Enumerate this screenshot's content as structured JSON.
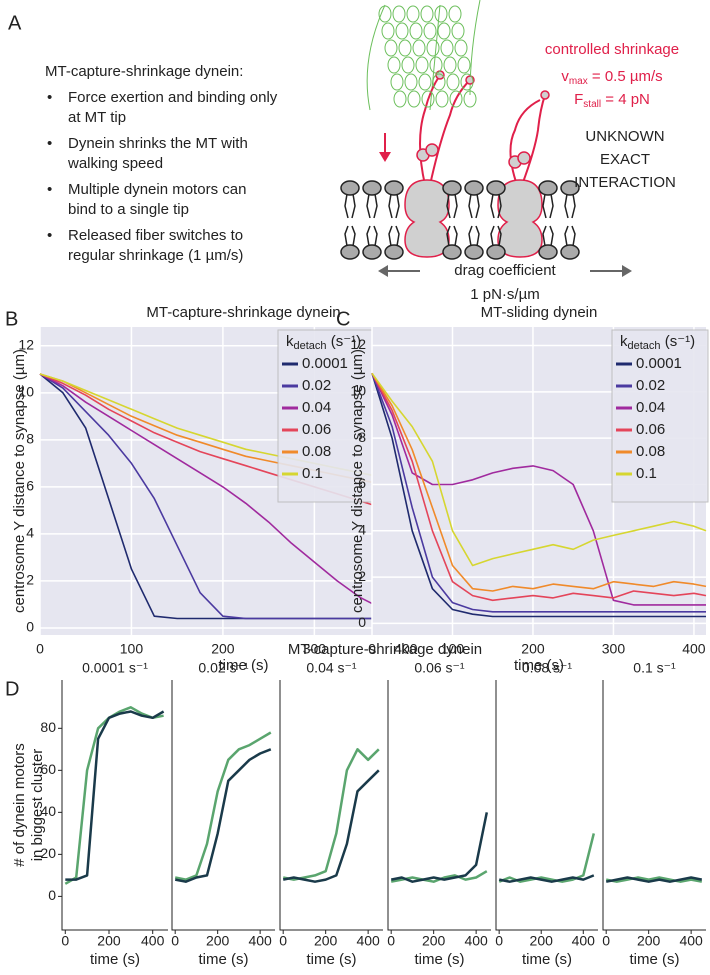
{
  "panel_a": {
    "label": "A",
    "title": "MT-capture-shrinkage dynein:",
    "bullets": [
      [
        "Force exertion and binding only",
        "at MT tip"
      ],
      [
        "Dynein shrinks the MT with",
        "walking speed"
      ],
      [
        "Multiple dynein motors can",
        "bind to a single tip"
      ],
      [
        "Released fiber switches to",
        "regular shrinkage (1 µm/s)"
      ]
    ],
    "diagram": {
      "shrinkage": "controlled shrinkage",
      "vmax": {
        "symbol": "v",
        "sub": "max",
        "rest": " = 0.5 µm/s"
      },
      "fstall": {
        "symbol": "F",
        "sub": "stall",
        "rest": " = 4 pN"
      },
      "unknown": [
        "UNKNOWN",
        "EXACT",
        "INTERACTION"
      ],
      "drag": [
        "drag coefficient",
        "1 pN·s/µm"
      ]
    }
  },
  "panel_d": {
    "label": "D",
    "title": "MT-capture-shrinkage dynein",
    "ylabel": [
      "# of dynein motors",
      "in biggest cluster"
    ]
  },
  "chart_data": [
    {
      "type": "line",
      "panel": "B",
      "title": "MT-capture-shrinkage dynein",
      "xlabel": "time (s)",
      "ylabel": "centrosome Y distance to synapse (µm)",
      "xlim": [
        0,
        445
      ],
      "ylim": [
        -0.3,
        12.8
      ],
      "xticks": [
        0,
        100,
        200,
        300,
        400
      ],
      "yticks": [
        0,
        2,
        4,
        6,
        8,
        10,
        12
      ],
      "grid": true,
      "legend_title": {
        "symbol": "k",
        "sub": "detach",
        "unit": " (s⁻¹)"
      },
      "legend": "upper right",
      "x": [
        0,
        25,
        50,
        75,
        100,
        125,
        150,
        175,
        200,
        225,
        250,
        275,
        300,
        325,
        350,
        375,
        400,
        425,
        445
      ],
      "series": [
        {
          "name": "0.0001",
          "color": "#1f2a6e",
          "values": [
            10.8,
            10,
            8.5,
            5.5,
            2.5,
            0.5,
            0.4,
            0.4,
            0.4,
            0.4,
            0.4,
            0.4,
            0.4,
            0.4,
            0.4,
            0.4,
            0.4,
            0.4,
            0.4
          ]
        },
        {
          "name": "0.02",
          "color": "#4b3aa0",
          "values": [
            10.8,
            10.2,
            9.2,
            8.2,
            7,
            5.5,
            3.5,
            1.5,
            0.5,
            0.4,
            0.4,
            0.4,
            0.4,
            0.4,
            0.4,
            0.4,
            0.4,
            0.4,
            0.4
          ]
        },
        {
          "name": "0.04",
          "color": "#a02a9e",
          "values": [
            10.8,
            10.3,
            9.6,
            9,
            8.4,
            7.8,
            7.2,
            6.6,
            6,
            5.3,
            4.5,
            3.6,
            2.8,
            2,
            1.3,
            0.8,
            0.5,
            0.4,
            0.4
          ]
        },
        {
          "name": "0.06",
          "color": "#e4455a",
          "values": [
            10.8,
            10.4,
            9.9,
            9.3,
            8.8,
            8.3,
            7.9,
            7.5,
            7.2,
            6.9,
            6.6,
            6.3,
            6,
            5.7,
            5.4,
            5.1,
            4.8,
            4.5,
            4.2
          ]
        },
        {
          "name": "0.08",
          "color": "#f08a2a",
          "values": [
            10.8,
            10.5,
            10,
            9.5,
            9,
            8.6,
            8.2,
            7.9,
            7.6,
            7.3,
            7.1,
            6.9,
            6.7,
            6.5,
            6.3,
            6.1,
            6,
            5.9,
            5.8
          ]
        },
        {
          "name": "0.1",
          "color": "#d6d630",
          "values": [
            10.8,
            10.5,
            10.1,
            9.7,
            9.3,
            8.9,
            8.5,
            8.2,
            7.9,
            7.6,
            7.4,
            7.2,
            7,
            6.8,
            6.6,
            6.4,
            6.3,
            6.2,
            6.1
          ]
        }
      ]
    },
    {
      "type": "line",
      "panel": "C",
      "title": "MT-sliding dynein",
      "xlabel": "time (s)",
      "ylabel": "centrosome Y distance to synapse (µm)",
      "xlim": [
        0,
        415
      ],
      "ylim": [
        -0.5,
        12.8
      ],
      "xticks": [
        0,
        100,
        200,
        300,
        400
      ],
      "yticks": [
        0,
        2,
        4,
        6,
        8,
        10,
        12
      ],
      "grid": true,
      "legend_title": {
        "symbol": "k",
        "sub": "detach",
        "unit": " (s⁻¹)"
      },
      "legend": "upper right",
      "x": [
        0,
        25,
        50,
        75,
        100,
        125,
        150,
        175,
        200,
        225,
        250,
        275,
        300,
        325,
        350,
        375,
        400,
        415
      ],
      "series": [
        {
          "name": "0.0001",
          "color": "#1f2a6e",
          "values": [
            10.8,
            8,
            4,
            1.5,
            0.6,
            0.4,
            0.3,
            0.3,
            0.3,
            0.3,
            0.3,
            0.3,
            0.3,
            0.3,
            0.3,
            0.3,
            0.3,
            0.3
          ]
        },
        {
          "name": "0.02",
          "color": "#4b3aa0",
          "values": [
            10.8,
            8.5,
            5,
            2,
            0.9,
            0.6,
            0.5,
            0.5,
            0.5,
            0.5,
            0.5,
            0.5,
            0.5,
            0.5,
            0.5,
            0.5,
            0.5,
            0.5
          ]
        },
        {
          "name": "0.04",
          "color": "#a02a9e",
          "values": [
            10.8,
            9,
            6.5,
            6,
            6,
            6.2,
            6.5,
            6.7,
            6.8,
            6.6,
            6,
            4,
            1,
            0.8,
            0.8,
            0.8,
            0.8,
            0.8
          ]
        },
        {
          "name": "0.06",
          "color": "#e4455a",
          "values": [
            10.8,
            9.2,
            7,
            4,
            1.8,
            1.2,
            1,
            1.1,
            1.2,
            1.1,
            1.3,
            1.2,
            1.1,
            1.4,
            1.3,
            1.2,
            1.3,
            1.2
          ]
        },
        {
          "name": "0.08",
          "color": "#f08a2a",
          "values": [
            10.8,
            9.4,
            7.5,
            5,
            2.5,
            1.5,
            1.4,
            1.6,
            1.5,
            1.7,
            1.6,
            1.5,
            1.8,
            1.7,
            1.6,
            1.8,
            1.7,
            1.6
          ]
        },
        {
          "name": "0.1",
          "color": "#d6d630",
          "values": [
            10.8,
            9.6,
            8.5,
            7,
            4,
            2.5,
            2.8,
            3,
            3.2,
            3.4,
            3.2,
            3.6,
            3.8,
            4,
            4.2,
            4.4,
            4.2,
            4
          ]
        }
      ]
    },
    {
      "type": "line",
      "title": "0.0001 s⁻¹",
      "xlabel": "time (s)",
      "xlim": [
        -15,
        470
      ],
      "ylim": [
        -16,
        103
      ],
      "xticks": [
        0,
        200,
        400
      ],
      "yticks": [
        0,
        20,
        40,
        60,
        80
      ],
      "x": [
        0,
        50,
        100,
        150,
        200,
        250,
        300,
        350,
        400,
        450
      ],
      "series": [
        {
          "color": "#5aa56e",
          "values": [
            6,
            9,
            60,
            80,
            85,
            88,
            90,
            87,
            85,
            86
          ]
        },
        {
          "color": "#1a3a4a",
          "values": [
            8,
            8,
            10,
            75,
            85,
            87,
            88,
            86,
            85,
            88
          ]
        }
      ]
    },
    {
      "type": "line",
      "title": "0.02 s⁻¹",
      "xlabel": "time (s)",
      "xlim": [
        -15,
        470
      ],
      "ylim": [
        -16,
        103
      ],
      "xticks": [
        0,
        200,
        400
      ],
      "x": [
        0,
        50,
        100,
        150,
        200,
        250,
        300,
        350,
        400,
        450
      ],
      "series": [
        {
          "color": "#5aa56e",
          "values": [
            9,
            8,
            10,
            25,
            50,
            65,
            70,
            72,
            75,
            78
          ]
        },
        {
          "color": "#1a3a4a",
          "values": [
            8,
            7,
            9,
            10,
            30,
            55,
            60,
            65,
            68,
            70
          ]
        }
      ]
    },
    {
      "type": "line",
      "title": "0.04 s⁻¹",
      "xlabel": "time (s)",
      "xlim": [
        -15,
        470
      ],
      "ylim": [
        -16,
        103
      ],
      "xticks": [
        0,
        200,
        400
      ],
      "x": [
        0,
        50,
        100,
        150,
        200,
        250,
        300,
        350,
        400,
        450
      ],
      "series": [
        {
          "color": "#5aa56e",
          "values": [
            9,
            8,
            9,
            10,
            12,
            30,
            60,
            70,
            65,
            70
          ]
        },
        {
          "color": "#1a3a4a",
          "values": [
            8,
            9,
            8,
            7,
            8,
            10,
            25,
            50,
            55,
            60
          ]
        }
      ]
    },
    {
      "type": "line",
      "title": "0.06 s⁻¹",
      "xlabel": "time (s)",
      "xlim": [
        -15,
        470
      ],
      "ylim": [
        -16,
        103
      ],
      "xticks": [
        0,
        200,
        400
      ],
      "x": [
        0,
        50,
        100,
        150,
        200,
        250,
        300,
        350,
        400,
        450
      ],
      "series": [
        {
          "color": "#5aa56e",
          "values": [
            7,
            8,
            9,
            8,
            7,
            9,
            10,
            8,
            9,
            12
          ]
        },
        {
          "color": "#1a3a4a",
          "values": [
            8,
            9,
            7,
            8,
            9,
            8,
            9,
            10,
            15,
            40
          ]
        }
      ]
    },
    {
      "type": "line",
      "title": "0.08 s⁻¹",
      "xlabel": "time (s)",
      "xlim": [
        -15,
        470
      ],
      "ylim": [
        -16,
        103
      ],
      "xticks": [
        0,
        200,
        400
      ],
      "x": [
        0,
        50,
        100,
        150,
        200,
        250,
        300,
        350,
        400,
        450
      ],
      "series": [
        {
          "color": "#5aa56e",
          "values": [
            7,
            9,
            7,
            8,
            9,
            8,
            7,
            8,
            10,
            30
          ]
        },
        {
          "color": "#1a3a4a",
          "values": [
            8,
            7,
            8,
            9,
            8,
            7,
            8,
            9,
            8,
            10
          ]
        }
      ]
    },
    {
      "type": "line",
      "title": "0.1 s⁻¹",
      "xlabel": "time (s)",
      "xlim": [
        -15,
        470
      ],
      "ylim": [
        -16,
        103
      ],
      "xticks": [
        0,
        200,
        400
      ],
      "x": [
        0,
        50,
        100,
        150,
        200,
        250,
        300,
        350,
        400,
        450
      ],
      "series": [
        {
          "color": "#5aa56e",
          "values": [
            8,
            7,
            8,
            9,
            8,
            9,
            8,
            7,
            8,
            7
          ]
        },
        {
          "color": "#1a3a4a",
          "values": [
            7,
            8,
            9,
            8,
            7,
            8,
            7,
            8,
            9,
            8
          ]
        }
      ]
    }
  ]
}
